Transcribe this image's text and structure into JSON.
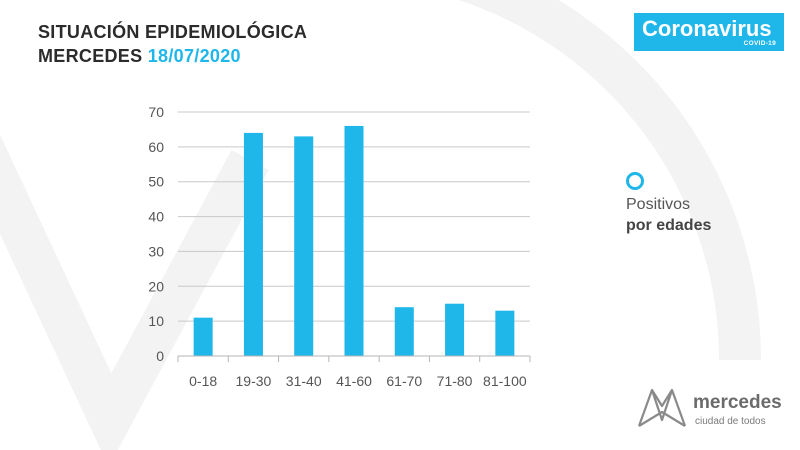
{
  "header": {
    "title_line1": "SITUACIÓN EPIDEMIOLÓGICA",
    "title_line2_city": "MERCEDES",
    "title_line2_date": "18/07/2020"
  },
  "brand_badge": {
    "name": "Coronavirus",
    "subtitle": "COVID-19",
    "color": "#1fb6ea"
  },
  "legend": {
    "line1": "Positivos",
    "line2": "por edades",
    "marker": "circle-outline-icon"
  },
  "footer_logo": {
    "name": "mercedes",
    "tagline": "ciudad de todos",
    "icon": "mercedes-logo-icon"
  },
  "chart_data": {
    "type": "bar",
    "categories": [
      "0-18",
      "19-30",
      "31-40",
      "41-60",
      "61-70",
      "71-80",
      "81-100"
    ],
    "series": [
      {
        "name": "Positivos por edades",
        "values": [
          11,
          64,
          63,
          66,
          14,
          15,
          13
        ]
      }
    ],
    "xlabel": "",
    "ylabel": "",
    "ylim": [
      0,
      70
    ],
    "yticks": [
      0,
      10,
      20,
      30,
      40,
      50,
      60,
      70
    ],
    "grid": true,
    "bar_color": "#1fb6ea",
    "legend_position": "right"
  }
}
